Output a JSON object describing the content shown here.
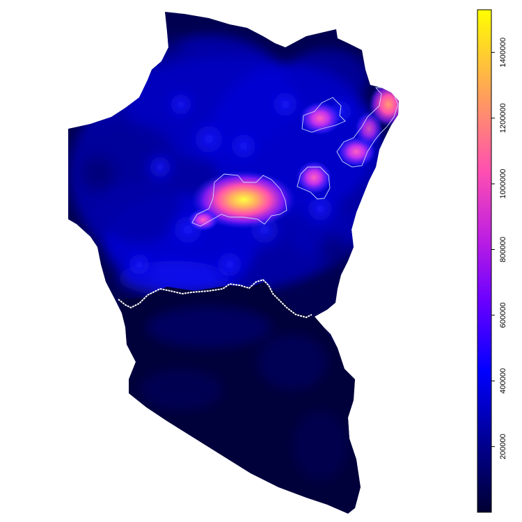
{
  "legend": {
    "ticks": [
      {
        "value": 200000,
        "label": "200000"
      },
      {
        "value": 400000,
        "label": "400000"
      },
      {
        "value": 600000,
        "label": "600000"
      },
      {
        "value": 800000,
        "label": "800000"
      },
      {
        "value": 1000000,
        "label": "1000000"
      },
      {
        "value": 1200000,
        "label": "1200000"
      },
      {
        "value": 1400000,
        "label": "1400000"
      }
    ],
    "min": 0,
    "max": 1530000,
    "colors": [
      "#000033",
      "#0000ff",
      "#8a00ff",
      "#ff40c0",
      "#ff9060",
      "#ffff00"
    ]
  },
  "colors": {
    "background": "#ffffff",
    "contour": "#d0d8ff",
    "boundary": "#ffffff"
  },
  "map": {
    "contour_levels": [
      800000
    ],
    "hotspots": [
      {
        "name": "primary",
        "value": 1450000
      },
      {
        "name": "northeast-edge",
        "value": 1250000
      },
      {
        "name": "northeast-upper",
        "value": 950000
      },
      {
        "name": "east-middle",
        "value": 900000
      },
      {
        "name": "east-lower",
        "value": 950000
      },
      {
        "name": "west-tail",
        "value": 900000
      }
    ]
  }
}
